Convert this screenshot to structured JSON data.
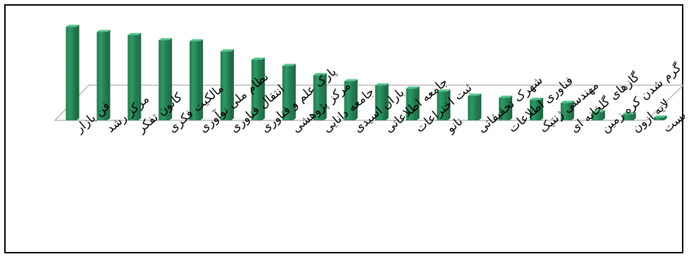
{
  "chart_data": {
    "type": "bar",
    "style": "3d-cylinder",
    "color": "#2e9a66",
    "categories": [
      "فن بازار",
      "مرکز رشد",
      "کانون تفکر",
      "مالکیت فکری",
      "نظام ملی نوآوری",
      "انتقال فناوری",
      "پارک علم و فناوری",
      "مرکز پژوهشی",
      "جامعه دانایی",
      "باران اسیدی",
      "جامعه اطلاعاتی",
      "ثبت اختراعات",
      "نانو",
      "شهرک تحقیقاتی",
      "فناوری اطلاعات",
      "مهندسی ژنتیک",
      "گازهای گلخانه ای",
      "گرم شدن کره زمین",
      "لایه ازون",
      "آلودگی محیط زیست"
    ],
    "values": [
      91,
      86,
      83,
      78,
      77,
      67,
      59,
      53,
      44,
      38,
      34,
      31,
      28,
      24,
      22,
      20,
      17,
      8,
      6,
      1
    ],
    "ylim": [
      0,
      100
    ],
    "grid": false,
    "legend": "none"
  }
}
